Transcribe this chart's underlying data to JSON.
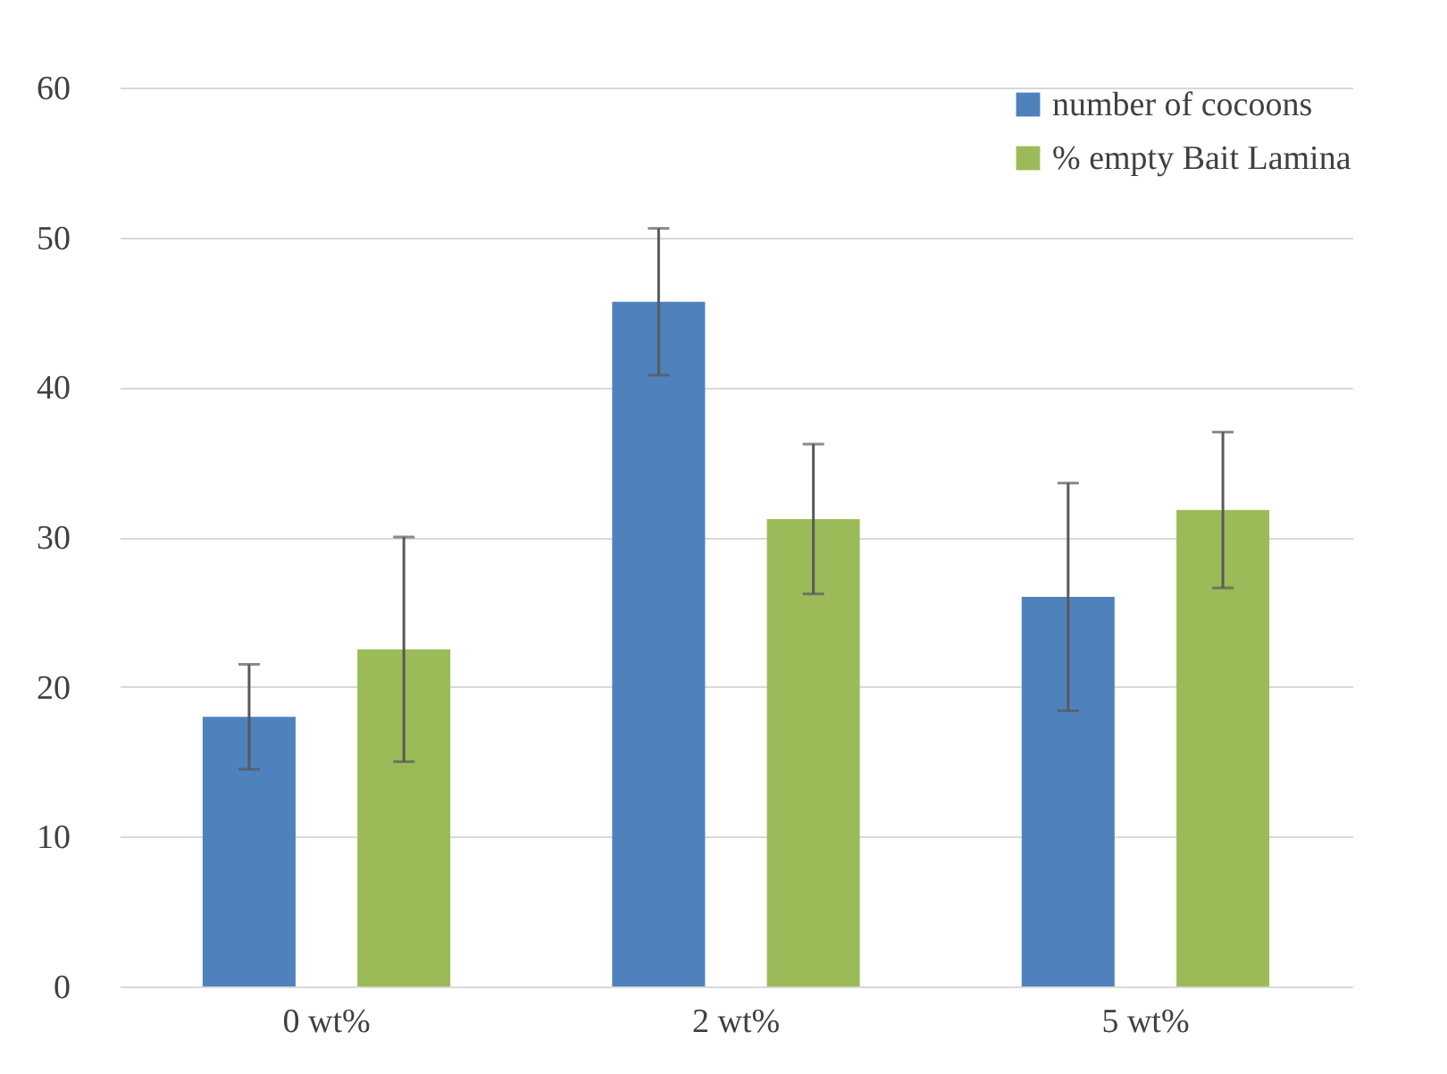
{
  "chart_data": {
    "type": "bar",
    "categories": [
      "0 wt%",
      "2 wt%",
      "5 wt%"
    ],
    "series": [
      {
        "name": "number of cocoons",
        "color": "#4f81bd",
        "values": [
          18.0,
          45.7,
          26.0
        ],
        "errors": [
          3.5,
          4.9,
          7.6
        ]
      },
      {
        "name": "% empty Bait Lamina",
        "color": "#9bbb59",
        "values": [
          22.5,
          31.2,
          31.8
        ],
        "errors": [
          7.5,
          5.0,
          5.2
        ]
      }
    ],
    "ylim": [
      0,
      60
    ],
    "yticks": [
      0,
      10,
      20,
      30,
      40,
      50,
      60
    ],
    "grid": "y",
    "legend": "top right"
  }
}
